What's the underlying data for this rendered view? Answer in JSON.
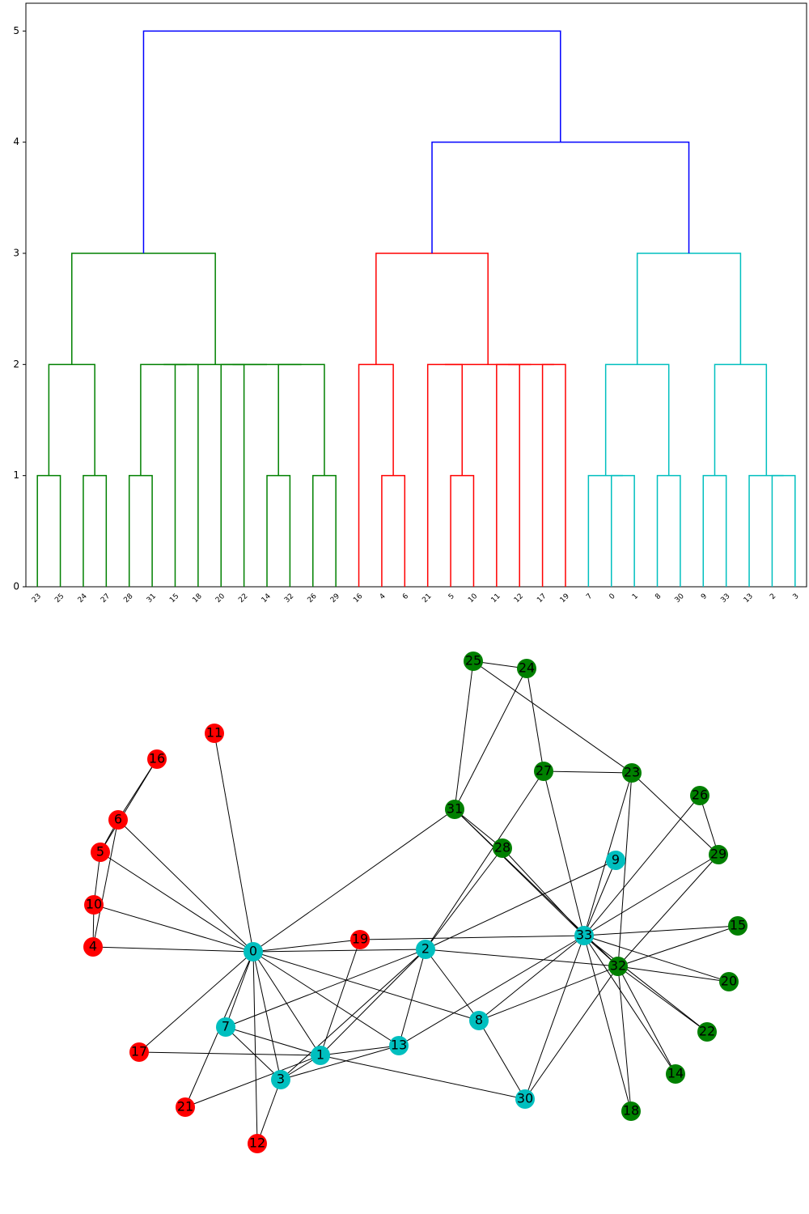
{
  "chart_data": [
    {
      "type": "dendrogram",
      "ylim": [
        0,
        5.25
      ],
      "yticks": [
        0,
        1,
        2,
        3,
        4,
        5
      ],
      "tree": {
        "height": 5,
        "color": "#0000ff",
        "children": [
          {
            "height": 3,
            "color": "#008000",
            "children": [
              {
                "height": 2,
                "children": [
                  {
                    "height": 1,
                    "children": [
                      {
                        "label": "23"
                      },
                      {
                        "label": "25"
                      }
                    ]
                  },
                  {
                    "height": 1,
                    "children": [
                      {
                        "label": "24"
                      },
                      {
                        "label": "27"
                      }
                    ]
                  }
                ]
              },
              {
                "height": 2,
                "children": [
                  {
                    "height": 2,
                    "children": [
                      {
                        "height": 1,
                        "children": [
                          {
                            "label": "28"
                          },
                          {
                            "label": "31"
                          }
                        ]
                      },
                      {
                        "height": 2,
                        "children": [
                          {
                            "label": "15"
                          },
                          {
                            "label": "18"
                          }
                        ]
                      }
                    ]
                  },
                  {
                    "height": 2,
                    "children": [
                      {
                        "height": 2,
                        "children": [
                          {
                            "label": "20"
                          },
                          {
                            "label": "22"
                          }
                        ]
                      },
                      {
                        "height": 2,
                        "children": [
                          {
                            "height": 1,
                            "children": [
                              {
                                "label": "14"
                              },
                              {
                                "label": "32"
                              }
                            ]
                          },
                          {
                            "height": 1,
                            "children": [
                              {
                                "label": "26"
                              },
                              {
                                "label": "29"
                              }
                            ]
                          }
                        ]
                      }
                    ]
                  }
                ]
              }
            ]
          },
          {
            "height": 4,
            "color": "#0000ff",
            "children": [
              {
                "height": 3,
                "color": "#ff0000",
                "children": [
                  {
                    "height": 2,
                    "children": [
                      {
                        "label": "16"
                      },
                      {
                        "height": 1,
                        "children": [
                          {
                            "label": "4"
                          },
                          {
                            "label": "6"
                          }
                        ]
                      }
                    ]
                  },
                  {
                    "height": 2,
                    "children": [
                      {
                        "height": 2,
                        "children": [
                          {
                            "label": "21"
                          },
                          {
                            "height": 1,
                            "children": [
                              {
                                "label": "5"
                              },
                              {
                                "label": "10"
                              }
                            ]
                          }
                        ]
                      },
                      {
                        "height": 2,
                        "children": [
                          {
                            "height": 2,
                            "children": [
                              {
                                "label": "11"
                              },
                              {
                                "label": "12"
                              }
                            ]
                          },
                          {
                            "height": 2,
                            "children": [
                              {
                                "label": "17"
                              },
                              {
                                "label": "19"
                              }
                            ]
                          }
                        ]
                      }
                    ]
                  }
                ]
              },
              {
                "height": 3,
                "color": "#00bfbf",
                "children": [
                  {
                    "height": 2,
                    "children": [
                      {
                        "height": 1,
                        "children": [
                          {
                            "label": "7"
                          },
                          {
                            "height": 1,
                            "children": [
                              {
                                "label": "0"
                              },
                              {
                                "label": "1"
                              }
                            ]
                          }
                        ]
                      },
                      {
                        "height": 1,
                        "children": [
                          {
                            "label": "8"
                          },
                          {
                            "label": "30"
                          }
                        ]
                      }
                    ]
                  },
                  {
                    "height": 2,
                    "children": [
                      {
                        "height": 1,
                        "children": [
                          {
                            "label": "9"
                          },
                          {
                            "label": "33"
                          }
                        ]
                      },
                      {
                        "height": 1,
                        "children": [
                          {
                            "label": "13"
                          },
                          {
                            "height": 1,
                            "children": [
                              {
                                "label": "2"
                              },
                              {
                                "label": "3"
                              }
                            ]
                          }
                        ]
                      }
                    ]
                  }
                ]
              }
            ]
          }
        ]
      }
    },
    {
      "type": "network",
      "nodes": [
        {
          "label": "0",
          "color": "#00bfbf"
        },
        {
          "label": "1",
          "color": "#00bfbf"
        },
        {
          "label": "2",
          "color": "#00bfbf"
        },
        {
          "label": "3",
          "color": "#00bfbf"
        },
        {
          "label": "4",
          "color": "#ff0000"
        },
        {
          "label": "5",
          "color": "#ff0000"
        },
        {
          "label": "6",
          "color": "#ff0000"
        },
        {
          "label": "7",
          "color": "#00bfbf"
        },
        {
          "label": "8",
          "color": "#00bfbf"
        },
        {
          "label": "9",
          "color": "#00bfbf"
        },
        {
          "label": "10",
          "color": "#ff0000"
        },
        {
          "label": "11",
          "color": "#ff0000"
        },
        {
          "label": "12",
          "color": "#ff0000"
        },
        {
          "label": "13",
          "color": "#00bfbf"
        },
        {
          "label": "14",
          "color": "#008000"
        },
        {
          "label": "15",
          "color": "#008000"
        },
        {
          "label": "16",
          "color": "#ff0000"
        },
        {
          "label": "17",
          "color": "#ff0000"
        },
        {
          "label": "18",
          "color": "#008000"
        },
        {
          "label": "19",
          "color": "#ff0000"
        },
        {
          "label": "20",
          "color": "#008000"
        },
        {
          "label": "21",
          "color": "#ff0000"
        },
        {
          "label": "22",
          "color": "#008000"
        },
        {
          "label": "23",
          "color": "#008000"
        },
        {
          "label": "24",
          "color": "#008000"
        },
        {
          "label": "25",
          "color": "#008000"
        },
        {
          "label": "26",
          "color": "#008000"
        },
        {
          "label": "27",
          "color": "#008000"
        },
        {
          "label": "28",
          "color": "#008000"
        },
        {
          "label": "29",
          "color": "#008000"
        },
        {
          "label": "30",
          "color": "#00bfbf"
        },
        {
          "label": "31",
          "color": "#008000"
        },
        {
          "label": "32",
          "color": "#008000"
        },
        {
          "label": "33",
          "color": "#00bfbf"
        }
      ],
      "edges": [
        [
          0,
          1
        ],
        [
          0,
          2
        ],
        [
          0,
          3
        ],
        [
          0,
          4
        ],
        [
          0,
          5
        ],
        [
          0,
          6
        ],
        [
          0,
          7
        ],
        [
          0,
          8
        ],
        [
          0,
          10
        ],
        [
          0,
          11
        ],
        [
          0,
          12
        ],
        [
          0,
          13
        ],
        [
          0,
          17
        ],
        [
          0,
          19
        ],
        [
          0,
          21
        ],
        [
          0,
          31
        ],
        [
          1,
          2
        ],
        [
          1,
          3
        ],
        [
          1,
          7
        ],
        [
          1,
          13
        ],
        [
          1,
          17
        ],
        [
          1,
          19
        ],
        [
          1,
          21
        ],
        [
          1,
          30
        ],
        [
          2,
          3
        ],
        [
          2,
          7
        ],
        [
          2,
          8
        ],
        [
          2,
          9
        ],
        [
          2,
          13
        ],
        [
          2,
          27
        ],
        [
          2,
          28
        ],
        [
          2,
          32
        ],
        [
          3,
          7
        ],
        [
          3,
          12
        ],
        [
          3,
          13
        ],
        [
          4,
          6
        ],
        [
          4,
          10
        ],
        [
          5,
          6
        ],
        [
          5,
          10
        ],
        [
          5,
          16
        ],
        [
          6,
          16
        ],
        [
          8,
          30
        ],
        [
          8,
          32
        ],
        [
          8,
          33
        ],
        [
          9,
          33
        ],
        [
          13,
          33
        ],
        [
          14,
          32
        ],
        [
          14,
          33
        ],
        [
          15,
          32
        ],
        [
          15,
          33
        ],
        [
          18,
          32
        ],
        [
          18,
          33
        ],
        [
          19,
          33
        ],
        [
          20,
          32
        ],
        [
          20,
          33
        ],
        [
          22,
          32
        ],
        [
          22,
          33
        ],
        [
          23,
          25
        ],
        [
          23,
          27
        ],
        [
          23,
          29
        ],
        [
          23,
          32
        ],
        [
          23,
          33
        ],
        [
          24,
          25
        ],
        [
          24,
          27
        ],
        [
          24,
          31
        ],
        [
          25,
          31
        ],
        [
          26,
          29
        ],
        [
          26,
          33
        ],
        [
          27,
          33
        ],
        [
          28,
          31
        ],
        [
          28,
          33
        ],
        [
          29,
          32
        ],
        [
          29,
          33
        ],
        [
          30,
          32
        ],
        [
          30,
          33
        ],
        [
          31,
          32
        ],
        [
          31,
          33
        ],
        [
          32,
          33
        ]
      ]
    }
  ]
}
